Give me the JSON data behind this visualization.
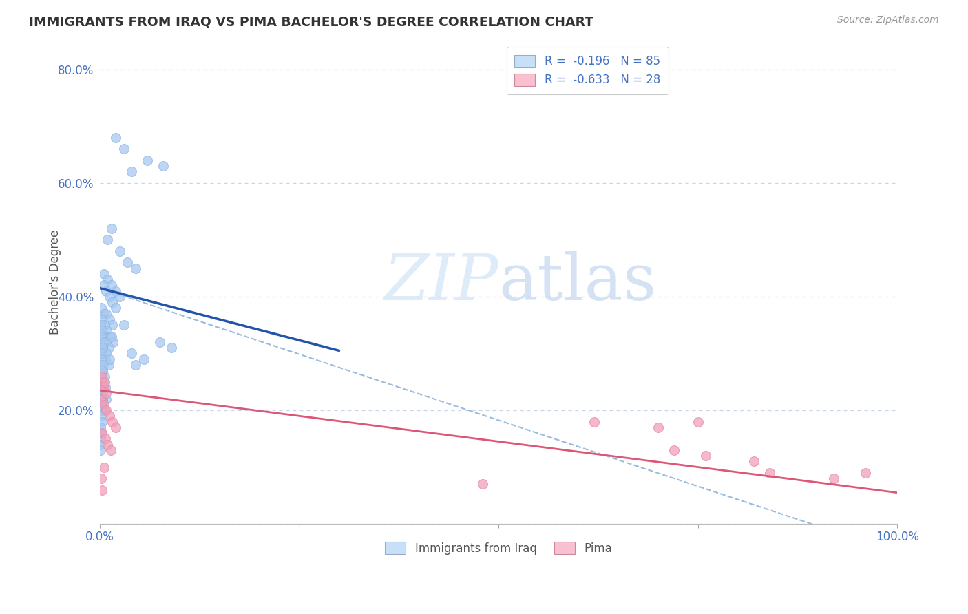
{
  "title": "IMMIGRANTS FROM IRAQ VS PIMA BACHELOR'S DEGREE CORRELATION CHART",
  "source": "Source: ZipAtlas.com",
  "ylabel": "Bachelor's Degree",
  "xlim": [
    0.0,
    1.0
  ],
  "ylim": [
    0.0,
    0.85
  ],
  "blue_color": "#a8c8f0",
  "pink_color": "#f0a0b8",
  "blue_fill_color": "#c8dff8",
  "pink_fill_color": "#f8c0d0",
  "blue_line_color": "#2255aa",
  "pink_line_color": "#dd5577",
  "dashed_line_color": "#99bbdd",
  "legend_R_blue": "R = -0.196",
  "legend_N_blue": "N = 85",
  "legend_R_pink": "R = -0.633",
  "legend_N_pink": "N = 28",
  "legend_label_blue": "Immigrants from Iraq",
  "legend_label_pink": "Pima",
  "blue_scatter_x": [
    0.02,
    0.03,
    0.04,
    0.06,
    0.08,
    0.01,
    0.015,
    0.025,
    0.035,
    0.045,
    0.005,
    0.01,
    0.015,
    0.02,
    0.025,
    0.005,
    0.008,
    0.012,
    0.016,
    0.02,
    0.002,
    0.005,
    0.008,
    0.012,
    0.016,
    0.003,
    0.006,
    0.009,
    0.013,
    0.017,
    0.002,
    0.005,
    0.008,
    0.011,
    0.003,
    0.007,
    0.011,
    0.004,
    0.008,
    0.012,
    0.002,
    0.006,
    0.003,
    0.007,
    0.004,
    0.008,
    0.001,
    0.004,
    0.003,
    0.005,
    0.001,
    0.002,
    0.004,
    0.003,
    0.006,
    0.001,
    0.003,
    0.002,
    0.005,
    0.004,
    0.001,
    0.002,
    0.004,
    0.003,
    0.001,
    0.003,
    0.001,
    0.003,
    0.001,
    0.002,
    0.001,
    0.002,
    0.003,
    0.001,
    0.002,
    0.001,
    0.001,
    0.001,
    0.015,
    0.04,
    0.075,
    0.055,
    0.09,
    0.045,
    0.03
  ],
  "blue_scatter_y": [
    0.68,
    0.66,
    0.62,
    0.64,
    0.63,
    0.5,
    0.52,
    0.48,
    0.46,
    0.45,
    0.44,
    0.43,
    0.42,
    0.41,
    0.4,
    0.42,
    0.41,
    0.4,
    0.39,
    0.38,
    0.38,
    0.37,
    0.37,
    0.36,
    0.35,
    0.36,
    0.35,
    0.34,
    0.33,
    0.32,
    0.34,
    0.33,
    0.32,
    0.31,
    0.3,
    0.29,
    0.28,
    0.31,
    0.3,
    0.29,
    0.27,
    0.26,
    0.25,
    0.24,
    0.23,
    0.22,
    0.28,
    0.27,
    0.26,
    0.25,
    0.24,
    0.23,
    0.22,
    0.21,
    0.2,
    0.35,
    0.34,
    0.33,
    0.32,
    0.31,
    0.3,
    0.29,
    0.28,
    0.27,
    0.26,
    0.25,
    0.24,
    0.23,
    0.22,
    0.21,
    0.2,
    0.19,
    0.18,
    0.17,
    0.16,
    0.15,
    0.14,
    0.13,
    0.33,
    0.3,
    0.32,
    0.29,
    0.31,
    0.28,
    0.35
  ],
  "pink_scatter_x": [
    0.002,
    0.005,
    0.008,
    0.012,
    0.016,
    0.02,
    0.003,
    0.007,
    0.01,
    0.014,
    0.002,
    0.005,
    0.008,
    0.003,
    0.006,
    0.002,
    0.005,
    0.003,
    0.48,
    0.62,
    0.7,
    0.75,
    0.82,
    0.84,
    0.92,
    0.96,
    0.72,
    0.76
  ],
  "pink_scatter_y": [
    0.22,
    0.21,
    0.2,
    0.19,
    0.18,
    0.17,
    0.16,
    0.15,
    0.14,
    0.13,
    0.25,
    0.24,
    0.23,
    0.26,
    0.25,
    0.08,
    0.1,
    0.06,
    0.07,
    0.18,
    0.17,
    0.18,
    0.11,
    0.09,
    0.08,
    0.09,
    0.13,
    0.12
  ],
  "blue_line_x": [
    0.0,
    0.3
  ],
  "blue_line_y": [
    0.415,
    0.305
  ],
  "pink_line_x": [
    0.0,
    1.0
  ],
  "pink_line_y": [
    0.235,
    0.055
  ],
  "dashed_line_x": [
    0.0,
    1.0
  ],
  "dashed_line_y": [
    0.415,
    -0.05
  ]
}
